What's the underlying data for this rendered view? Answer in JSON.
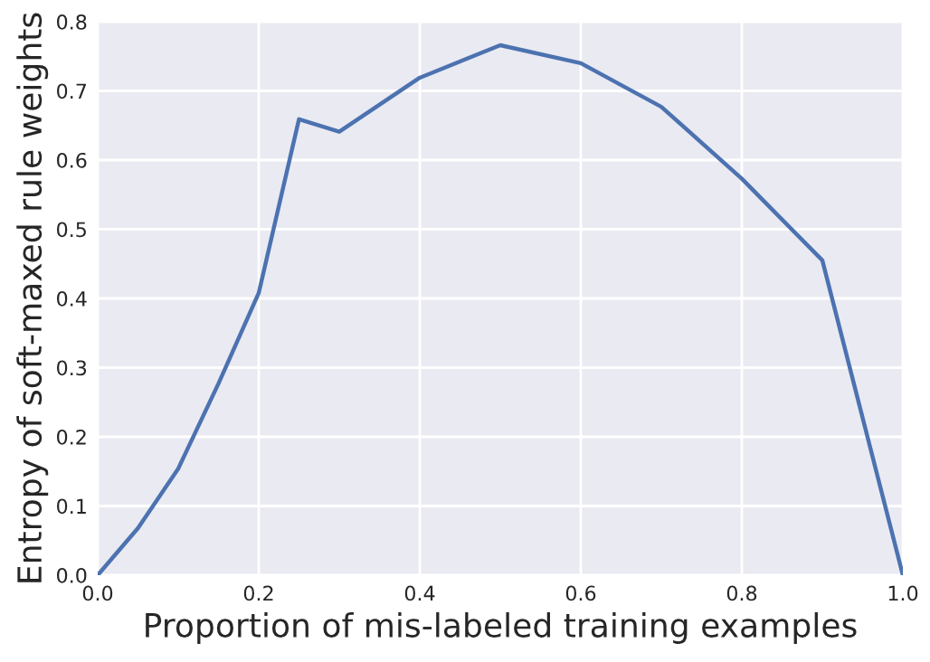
{
  "chart_data": {
    "type": "line",
    "xlabel": "Proportion of mis-labeled training examples",
    "ylabel": "Entropy of soft-maxed rule weights",
    "x": [
      0,
      0.05,
      0.1,
      0.15,
      0.2,
      0.25,
      0.3,
      0.4,
      0.5,
      0.6,
      0.7,
      0.8,
      0.9,
      1.0
    ],
    "series": [
      {
        "color": "#4c72b0",
        "values": [
          0,
          0.068,
          0.154,
          0.277,
          0.408,
          0.659,
          0.641,
          0.719,
          0.766,
          0.74,
          0.677,
          0.573,
          0.455,
          0
        ]
      }
    ],
    "xlim": [
      0,
      1
    ],
    "ylim": [
      0,
      0.8
    ],
    "xticks": [
      {
        "value": 0,
        "label": "0.0"
      },
      0.2,
      0.4,
      0.6,
      0.8,
      {
        "value": 1,
        "label": "1.0"
      }
    ],
    "yticks": [
      {
        "value": 0,
        "label": "0.0"
      },
      0.1,
      0.2,
      0.3,
      0.4,
      0.5,
      0.6,
      0.7,
      0.8
    ],
    "grid": true,
    "legend": false,
    "marker": "none",
    "line_style": "solid"
  }
}
